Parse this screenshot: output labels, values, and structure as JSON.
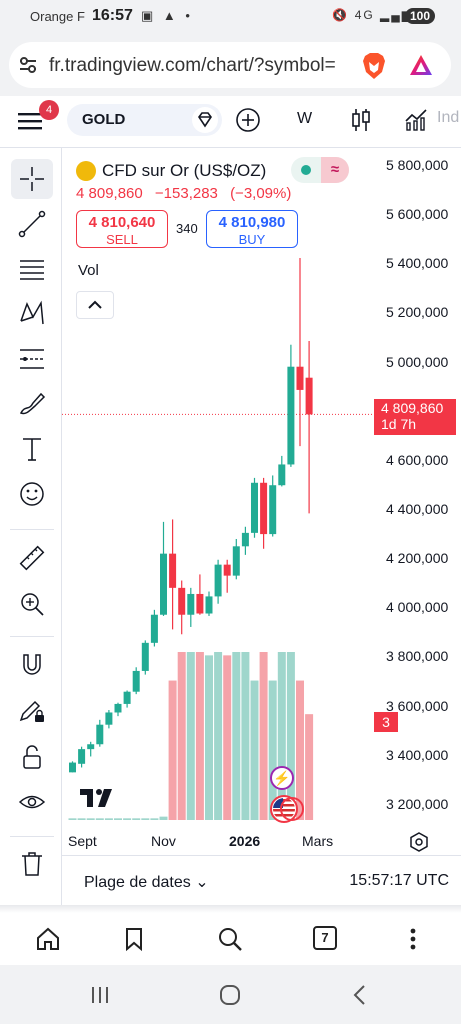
{
  "status_bar": {
    "carrier": "Orange F",
    "time": "16:57",
    "network": "4G",
    "battery": "100"
  },
  "browser": {
    "url": "fr.tradingview.com/chart/?symbol=",
    "tabs_count": "7",
    "icons": [
      "tune-icon",
      "brave-lion-icon",
      "brave-rewards-icon",
      "home-icon",
      "bookmark-icon",
      "search-icon",
      "more-icon"
    ]
  },
  "toolbar": {
    "notification_count": "4",
    "symbol": "GOLD",
    "interval": "W",
    "indicators_label": "Ind"
  },
  "legend": {
    "instrument": "CFD sur Or (US$/OZ)",
    "last_price": "4 809,860",
    "change": "−153,283",
    "change_pct": "(−3,09%)",
    "sell_price": "4 810,640",
    "sell_label": "SELL",
    "spread": "340",
    "buy_price": "4 810,980",
    "buy_label": "BUY",
    "volume_label": "Vol"
  },
  "price_axis": {
    "ticks": [
      "5 800,000",
      "5 600,000",
      "5 400,000",
      "5 200,000",
      "5 000,000",
      "4 600,000",
      "4 400,000",
      "4 200,000",
      "4 000,000",
      "3 800,000",
      "3 600,000",
      "3 400,000",
      "3 200,000"
    ],
    "current_price": "4 809,860",
    "countdown": "1d 7h",
    "volume_value": "3"
  },
  "time_axis": {
    "labels": [
      "Sept",
      "Nov",
      "2026",
      "Mars"
    ]
  },
  "bottom_bar": {
    "range_label": "Plage de dates",
    "clock": "15:57:17 UTC"
  },
  "colors": {
    "up": "#22ab94",
    "down": "#f23645",
    "up_volume": "#9fd6cc",
    "down_volume": "#f5a3a9",
    "accent": "#2962ff"
  },
  "chart_data": {
    "type": "candlestick",
    "interval": "W",
    "ylim": [
      3150000,
      5900000
    ],
    "candles": [
      {
        "o": 3345000,
        "h": 3390000,
        "l": 3345000,
        "c": 3385000
      },
      {
        "o": 3380000,
        "h": 3450000,
        "l": 3365000,
        "c": 3440000
      },
      {
        "o": 3440000,
        "h": 3470000,
        "l": 3410000,
        "c": 3460000
      },
      {
        "o": 3460000,
        "h": 3560000,
        "l": 3450000,
        "c": 3540000
      },
      {
        "o": 3540000,
        "h": 3600000,
        "l": 3525000,
        "c": 3590000
      },
      {
        "o": 3590000,
        "h": 3630000,
        "l": 3575000,
        "c": 3625000
      },
      {
        "o": 3625000,
        "h": 3680000,
        "l": 3610000,
        "c": 3675000
      },
      {
        "o": 3675000,
        "h": 3775000,
        "l": 3665000,
        "c": 3760000
      },
      {
        "o": 3760000,
        "h": 3885000,
        "l": 3745000,
        "c": 3875000
      },
      {
        "o": 3875000,
        "h": 4010000,
        "l": 3860000,
        "c": 3990000
      },
      {
        "o": 3990000,
        "h": 4370000,
        "l": 3985000,
        "c": 4240000
      },
      {
        "o": 4240000,
        "h": 4380000,
        "l": 3930000,
        "c": 4100000
      },
      {
        "o": 4100000,
        "h": 4130000,
        "l": 3910000,
        "c": 3990000
      },
      {
        "o": 3990000,
        "h": 4100000,
        "l": 3940000,
        "c": 4075000
      },
      {
        "o": 4075000,
        "h": 4155000,
        "l": 3990000,
        "c": 3995000
      },
      {
        "o": 3995000,
        "h": 4085000,
        "l": 3985000,
        "c": 4065000
      },
      {
        "o": 4065000,
        "h": 4215000,
        "l": 4035000,
        "c": 4195000
      },
      {
        "o": 4195000,
        "h": 4215000,
        "l": 4080000,
        "c": 4150000
      },
      {
        "o": 4150000,
        "h": 4300000,
        "l": 4135000,
        "c": 4270000
      },
      {
        "o": 4270000,
        "h": 4350000,
        "l": 4235000,
        "c": 4325000
      },
      {
        "o": 4325000,
        "h": 4550000,
        "l": 4305000,
        "c": 4530000
      },
      {
        "o": 4530000,
        "h": 4550000,
        "l": 4260000,
        "c": 4320000
      },
      {
        "o": 4320000,
        "h": 4560000,
        "l": 4310000,
        "c": 4520000
      },
      {
        "o": 4520000,
        "h": 4640000,
        "l": 4515000,
        "c": 4605000
      },
      {
        "o": 4605000,
        "h": 5095000,
        "l": 4595000,
        "c": 5005000
      },
      {
        "o": 5005000,
        "h": 5450000,
        "l": 4680000,
        "c": 4910000
      },
      {
        "o": 4960000,
        "h": 5110000,
        "l": 4405000,
        "c": 4809860
      }
    ],
    "volume_heights": [
      0.01,
      0.01,
      0.01,
      0.01,
      0.01,
      0.01,
      0.01,
      0.01,
      0.01,
      0.01,
      0.02,
      0.83,
      1.0,
      1.0,
      1.0,
      0.98,
      1.0,
      0.98,
      1.0,
      1.0,
      0.83,
      1.0,
      0.83,
      1.0,
      1.0,
      0.83,
      0.63
    ]
  }
}
